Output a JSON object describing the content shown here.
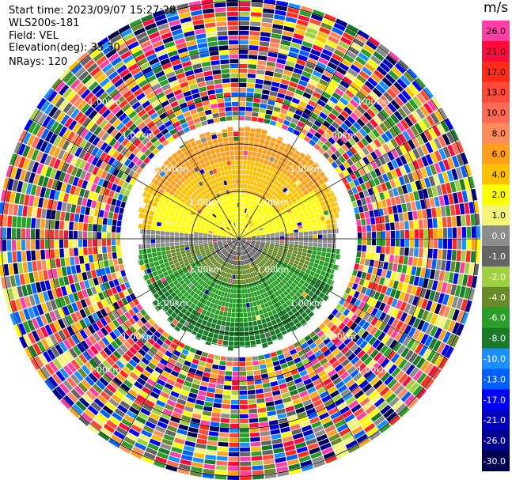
{
  "info": {
    "start_time": "Start time: 2023/09/07 15:27:28",
    "site": "WLS200s-181",
    "field": "Field: VEL",
    "elevation": "Elevation(deg): 35.30",
    "nrays": "NRays: 120"
  },
  "ring_label": "1.00km",
  "colorbar": {
    "unit": "m/s",
    "bands": [
      {
        "label": "26.0",
        "color": "#ff3fa8"
      },
      {
        "label": "21.0",
        "color": "#ff0a3c"
      },
      {
        "label": "17.0",
        "color": "#ff2a1a"
      },
      {
        "label": "13.0",
        "color": "#ff4a3a"
      },
      {
        "label": "10.0",
        "color": "#ff6a55"
      },
      {
        "label": "8.0",
        "color": "#ff8c5a"
      },
      {
        "label": "6.0",
        "color": "#ffa01c"
      },
      {
        "label": "4.0",
        "color": "#ffc000"
      },
      {
        "label": "2.0",
        "color": "#ffff00"
      },
      {
        "label": "1.0",
        "color": "#f4f478"
      },
      {
        "label": "0.0",
        "color": "#8c8c8c"
      },
      {
        "label": "-1.0",
        "color": "#646464"
      },
      {
        "label": "-2.0",
        "color": "#a0d040"
      },
      {
        "label": "-4.0",
        "color": "#6a8a2a"
      },
      {
        "label": "-6.0",
        "color": "#2aa02a"
      },
      {
        "label": "-8.0",
        "color": "#1a7a2a"
      },
      {
        "label": "-10.0",
        "color": "#1a90ff"
      },
      {
        "label": "-13.0",
        "color": "#0060ff"
      },
      {
        "label": "-17.0",
        "color": "#0000ff"
      },
      {
        "label": "-21.0",
        "color": "#0000c0"
      },
      {
        "label": "-26.0",
        "color": "#000090"
      },
      {
        "label": "-30.0",
        "color": "#000050"
      }
    ]
  }
}
